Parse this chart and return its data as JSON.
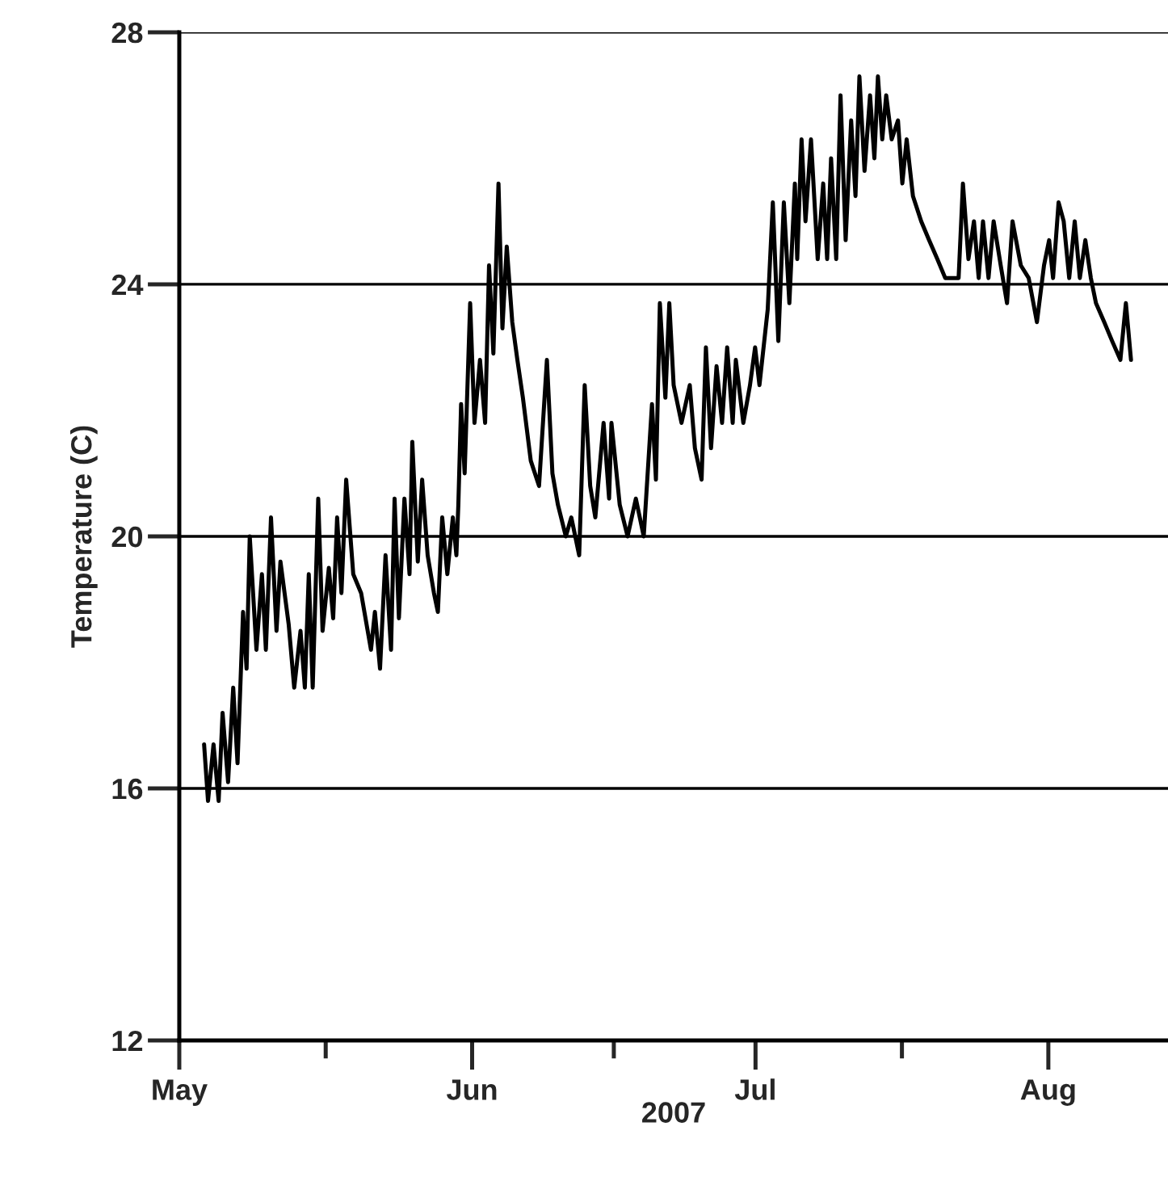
{
  "chart_data": {
    "type": "line",
    "xlabel": "2007",
    "ylabel": "Temperature (C)",
    "x": [
      "2007-05-03T15:00",
      "2007-05-04T01:00",
      "2007-05-04T15:00",
      "2007-05-05T04:00",
      "2007-05-05T14:00",
      "2007-05-06T04:00",
      "2007-05-06T17:00",
      "2007-05-07T04:00",
      "2007-05-07T18:00",
      "2007-05-08T03:00",
      "2007-05-08T11:00",
      "2007-05-09T04:00",
      "2007-05-09T18:00",
      "2007-05-10T04:00",
      "2007-05-10T17:00",
      "2007-05-11T07:00",
      "2007-05-11T17:00",
      "2007-05-12T14:00",
      "2007-05-13T04:00",
      "2007-05-13T20:00",
      "2007-05-14T07:00",
      "2007-05-14T17:00",
      "2007-05-15T03:00",
      "2007-05-15T17:00",
      "2007-05-16T04:00",
      "2007-05-16T20:00",
      "2007-05-17T07:00",
      "2007-05-17T17:00",
      "2007-05-18T04:00",
      "2007-05-18T16:00",
      "2007-05-19T10:00",
      "2007-05-20T06:00",
      "2007-05-21T07:00",
      "2007-05-21T17:00",
      "2007-05-22T06:00",
      "2007-05-22T20:00",
      "2007-05-23T10:00",
      "2007-05-23T19:00",
      "2007-05-24T06:00",
      "2007-05-24T20:00",
      "2007-05-25T09:00",
      "2007-05-25T16:00",
      "2007-05-26T06:00",
      "2007-05-26T17:00",
      "2007-05-27T07:00",
      "2007-05-27T23:00",
      "2007-05-28T09:00",
      "2007-05-28T20:00",
      "2007-05-29T09:00",
      "2007-05-29T23:00",
      "2007-05-30T08:00",
      "2007-05-30T13:00",
      "2007-05-30T20:00",
      "2007-05-31T05:00",
      "2007-05-31T19:00",
      "2007-06-01T06:00",
      "2007-06-01T20:00",
      "2007-06-02T09:00",
      "2007-06-02T19:00",
      "2007-06-03T06:00",
      "2007-06-03T19:00",
      "2007-06-04T05:00",
      "2007-06-04T16:00",
      "2007-06-05T06:00",
      "2007-06-05T19:00",
      "2007-06-06T09:00",
      "2007-06-07T05:00",
      "2007-06-08T02:00",
      "2007-06-08T22:00",
      "2007-06-09T12:00",
      "2007-06-10T02:00",
      "2007-06-10T22:00",
      "2007-06-11T12:00",
      "2007-06-12T08:00",
      "2007-06-12T22:00",
      "2007-06-13T12:00",
      "2007-06-14T01:00",
      "2007-06-14T22:00",
      "2007-06-15T12:00",
      "2007-06-15T18:00",
      "2007-06-16T15:00",
      "2007-06-17T11:00",
      "2007-06-18T08:00",
      "2007-06-19T04:00",
      "2007-06-20T01:00",
      "2007-06-20T11:00",
      "2007-06-20T21:00",
      "2007-06-21T11:00",
      "2007-06-21T21:00",
      "2007-06-22T08:00",
      "2007-06-23T04:00",
      "2007-06-24T01:00",
      "2007-06-24T14:00",
      "2007-06-25T07:00",
      "2007-06-25T18:00",
      "2007-06-26T07:00",
      "2007-06-26T21:00",
      "2007-06-27T11:00",
      "2007-06-28T00:00",
      "2007-06-28T14:00",
      "2007-06-28T22:00",
      "2007-06-29T17:00",
      "2007-06-30T10:00",
      "2007-06-30T23:00",
      "2007-07-01T10:00",
      "2007-07-02T07:00",
      "2007-07-02T20:00",
      "2007-07-03T10:00",
      "2007-07-04T00:00",
      "2007-07-04T14:00",
      "2007-07-05T04:00",
      "2007-07-05T10:00",
      "2007-07-05T21:00",
      "2007-07-06T07:00",
      "2007-07-06T21:00",
      "2007-07-07T14:00",
      "2007-07-08T04:00",
      "2007-07-08T14:00",
      "2007-07-09T00:00",
      "2007-07-09T13:00",
      "2007-07-10T00:00",
      "2007-07-10T13:00",
      "2007-07-11T03:00",
      "2007-07-11T14:00",
      "2007-07-12T00:00",
      "2007-07-12T13:00",
      "2007-07-13T03:00",
      "2007-07-13T14:00",
      "2007-07-13T23:00",
      "2007-07-14T10:00",
      "2007-07-14T20:00",
      "2007-07-15T10:00",
      "2007-07-16T02:00",
      "2007-07-16T13:00",
      "2007-07-17T00:00",
      "2007-07-17T16:00",
      "2007-07-18T13:00",
      "2007-07-19T09:00",
      "2007-07-20T06:00",
      "2007-07-21T02:00",
      "2007-07-22T12:00",
      "2007-07-22T23:00",
      "2007-07-23T13:00",
      "2007-07-24T03:00",
      "2007-07-24T15:00",
      "2007-07-25T02:00",
      "2007-07-25T16:00",
      "2007-07-26T05:00",
      "2007-07-26T23:00",
      "2007-07-27T15:00",
      "2007-07-28T05:00",
      "2007-07-29T02:00",
      "2007-07-29T22:00",
      "2007-07-30T19:00",
      "2007-07-31T13:00",
      "2007-08-01T02:00",
      "2007-08-01T12:00",
      "2007-08-02T02:00",
      "2007-08-02T15:00",
      "2007-08-03T05:00",
      "2007-08-03T19:00",
      "2007-08-04T08:00",
      "2007-08-04T22:00",
      "2007-08-05T12:00",
      "2007-08-06T01:00",
      "2007-08-06T22:00",
      "2007-08-07T18:00",
      "2007-08-08T15:00",
      "2007-08-09T05:00",
      "2007-08-09T18:00"
    ],
    "series": [
      {
        "color": "#000000",
        "values": [
          16.7,
          15.8,
          16.7,
          15.8,
          17.2,
          16.1,
          17.6,
          16.4,
          18.8,
          17.9,
          20.0,
          18.2,
          19.4,
          18.2,
          20.3,
          18.5,
          19.6,
          18.6,
          17.6,
          18.5,
          17.6,
          19.4,
          17.6,
          20.6,
          18.5,
          19.5,
          18.7,
          20.3,
          19.1,
          20.9,
          19.4,
          19.1,
          18.2,
          18.8,
          17.9,
          19.7,
          18.2,
          20.6,
          18.7,
          20.6,
          19.4,
          21.5,
          19.6,
          20.9,
          19.7,
          19.1,
          18.8,
          20.3,
          19.4,
          20.3,
          19.7,
          20.5,
          22.1,
          21.0,
          23.7,
          21.8,
          22.8,
          21.8,
          24.3,
          22.9,
          25.6,
          23.3,
          24.6,
          23.4,
          22.8,
          22.2,
          21.2,
          20.8,
          22.8,
          21.0,
          20.5,
          20.0,
          20.3,
          19.7,
          22.4,
          20.8,
          20.3,
          21.8,
          20.6,
          21.8,
          20.5,
          20.0,
          20.6,
          20.0,
          22.1,
          20.9,
          23.7,
          22.2,
          23.7,
          22.4,
          21.8,
          22.4,
          21.4,
          20.9,
          23.0,
          21.4,
          22.7,
          21.8,
          23.0,
          21.8,
          22.8,
          21.8,
          22.4,
          23.0,
          22.4,
          23.6,
          25.3,
          23.1,
          25.3,
          23.7,
          25.6,
          24.4,
          26.3,
          25.0,
          26.3,
          24.4,
          25.6,
          24.4,
          26.0,
          24.4,
          27.0,
          24.7,
          26.6,
          25.4,
          27.3,
          25.8,
          27.0,
          26.0,
          27.3,
          26.3,
          27.0,
          26.3,
          26.6,
          25.6,
          26.3,
          25.4,
          25.0,
          24.7,
          24.4,
          24.1,
          24.1,
          25.6,
          24.4,
          25.0,
          24.1,
          25.0,
          24.1,
          25.0,
          24.3,
          23.7,
          25.0,
          24.3,
          24.1,
          23.4,
          24.3,
          24.7,
          24.1,
          25.3,
          25.0,
          24.1,
          25.0,
          24.1,
          24.7,
          24.1,
          23.7,
          23.4,
          23.1,
          22.8,
          23.7,
          22.8
        ]
      }
    ],
    "xlim": [
      "2007-05-01",
      "2007-08-13T16:00"
    ],
    "xticks": [
      {
        "value": "2007-05-01",
        "label": "May"
      },
      {
        "value": "2007-05-16T12:00",
        "label": null
      },
      {
        "value": "2007-06-01",
        "label": "Jun"
      },
      {
        "value": "2007-06-16",
        "label": null
      },
      {
        "value": "2007-07-01",
        "label": "Jul"
      },
      {
        "value": "2007-07-16T12:00",
        "label": null
      },
      {
        "value": "2007-08-01",
        "label": "Aug"
      }
    ],
    "ylim": [
      12,
      28
    ],
    "yticks": [
      12,
      16,
      20,
      24,
      28
    ],
    "grid": "y"
  }
}
